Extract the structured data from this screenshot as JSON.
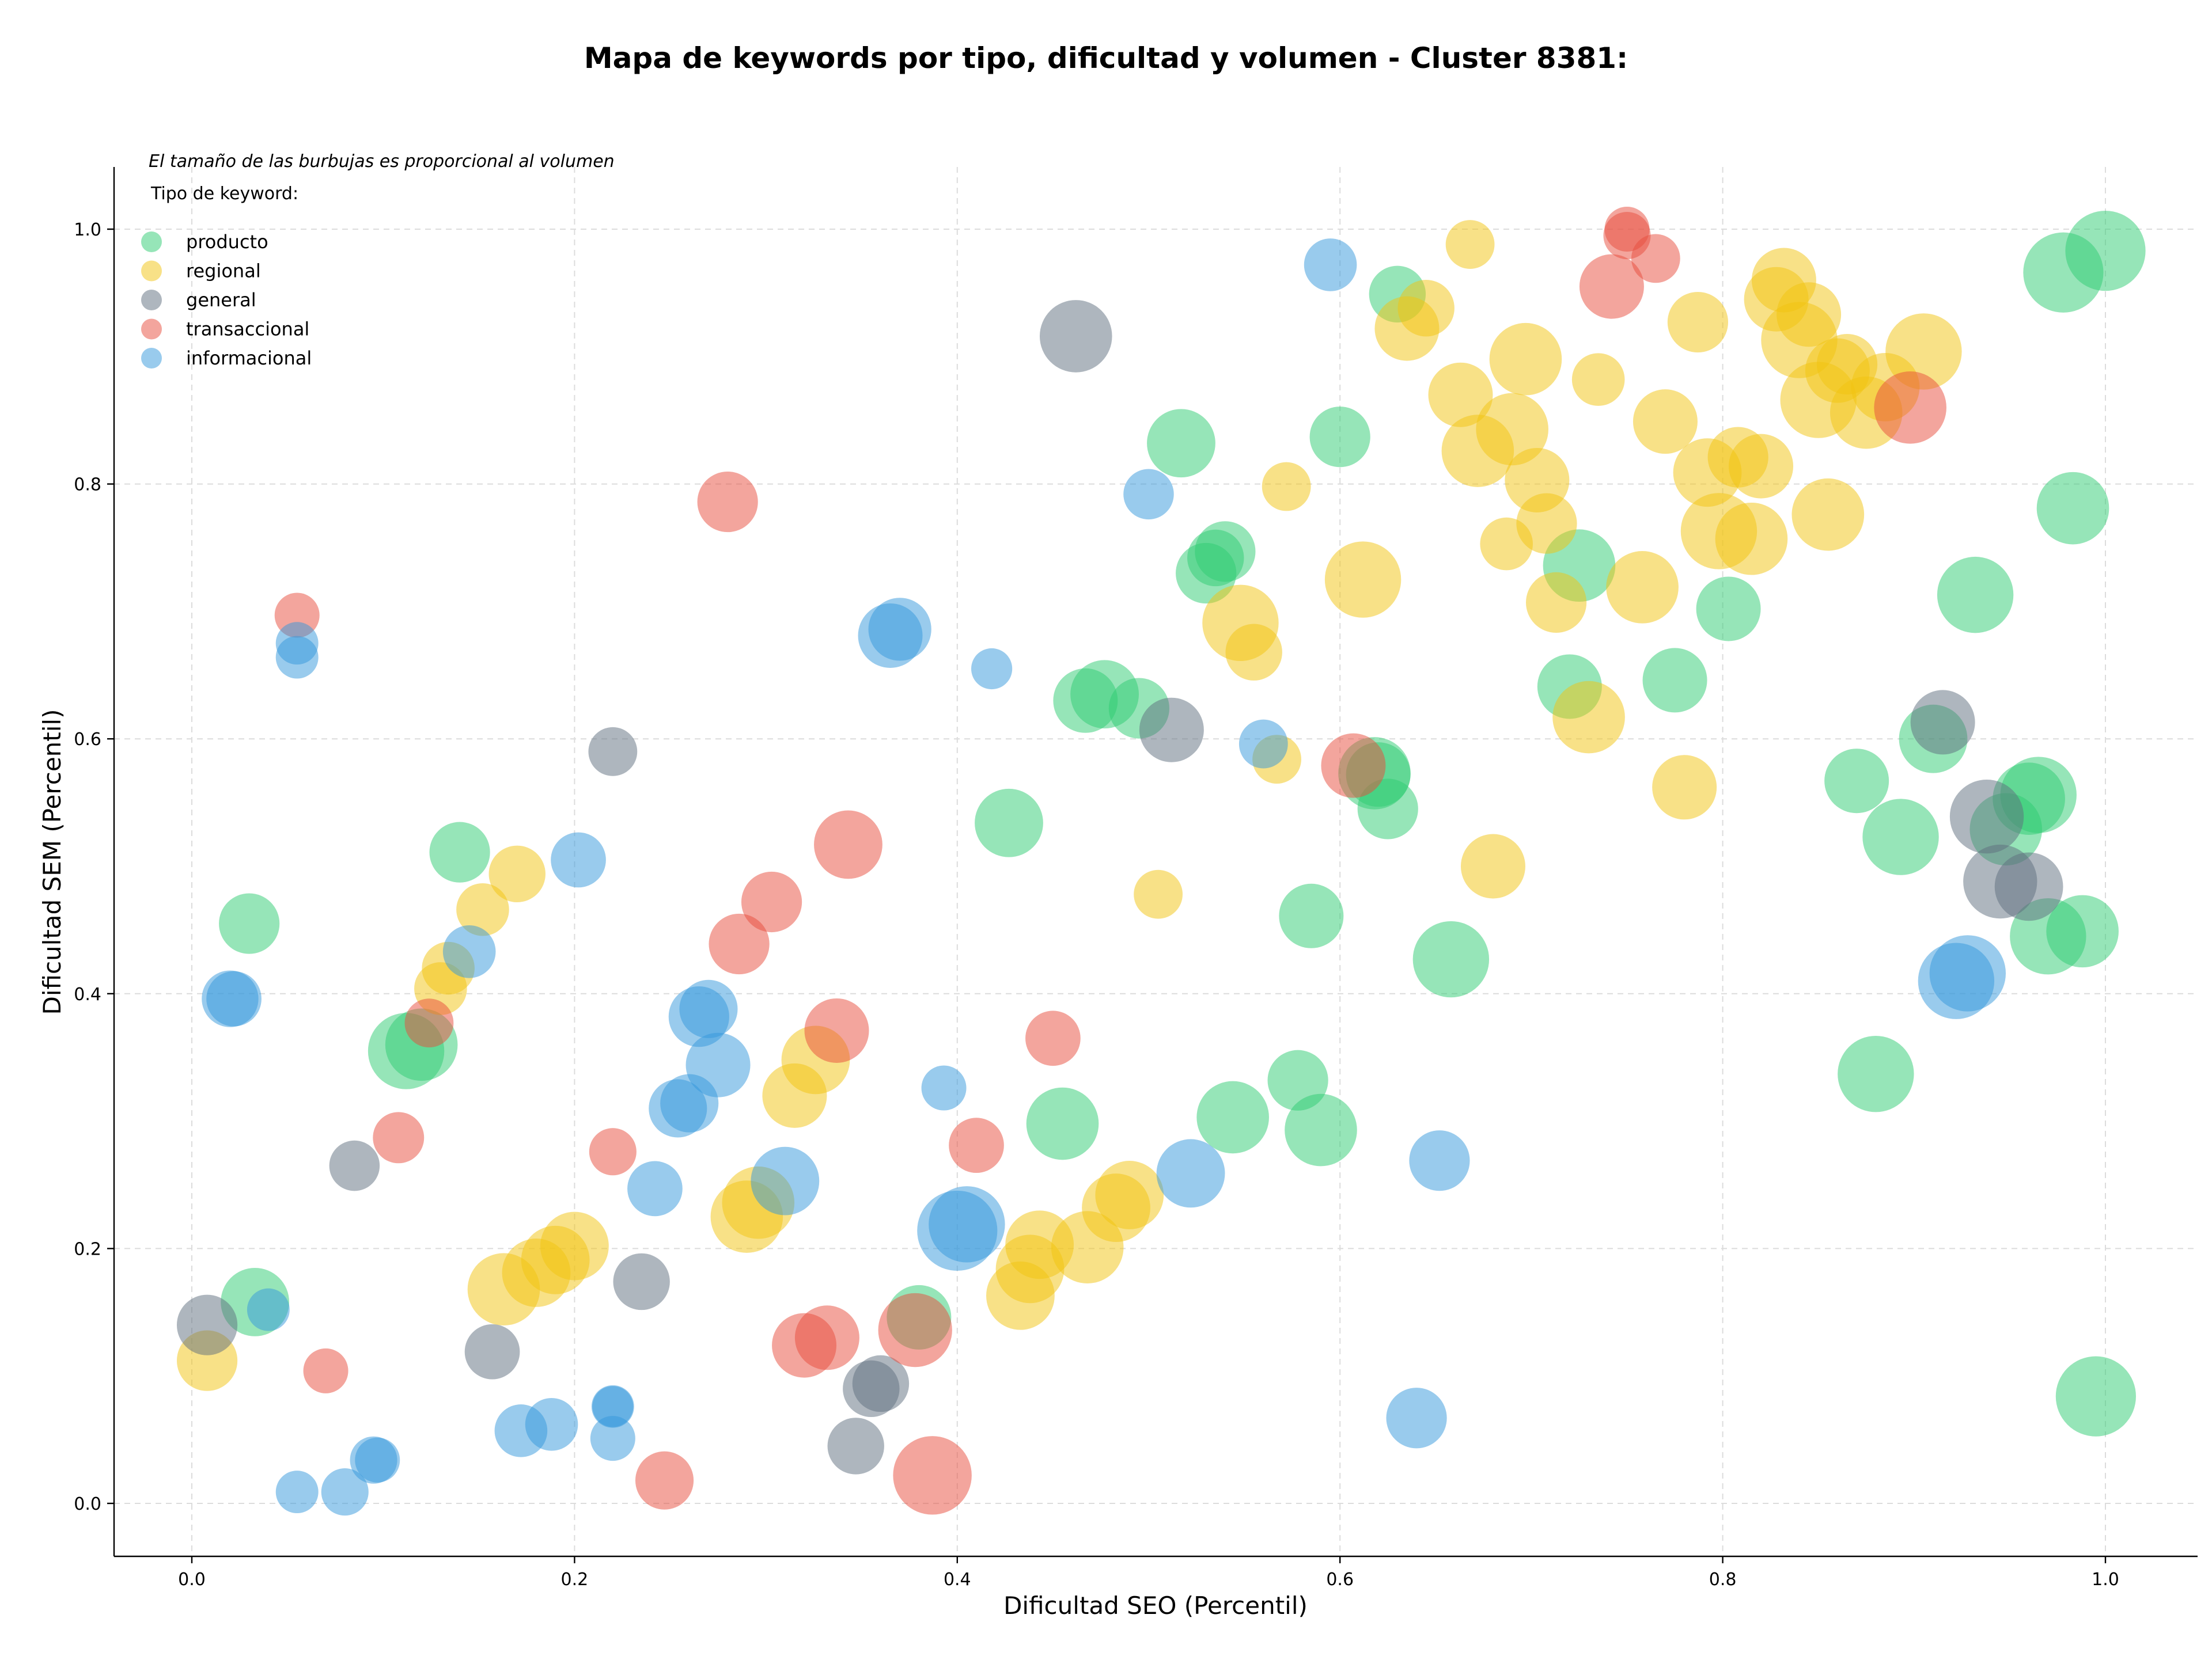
{
  "chart_data": {
    "type": "scatter",
    "title": "Mapa de keywords por tipo, dificultad y volumen - Cluster 8381:",
    "xlabel": "Dificultad SEO (Percentil)",
    "ylabel": "Dificultad SEM (Percentil)",
    "xlim": [
      -0.04,
      1.05
    ],
    "ylim": [
      -0.04,
      1.05
    ],
    "xticks": [
      "0.0",
      "0.2",
      "0.4",
      "0.6",
      "0.8",
      "1.0"
    ],
    "yticks": [
      "0.0",
      "0.2",
      "0.4",
      "0.6",
      "0.8",
      "1.0"
    ],
    "grid": true,
    "legend_placement": "top-left",
    "legend_title": "Tipo de keyword:",
    "annotation": "El tamaño de las burbujas es proporcional al volumen",
    "series": [
      {
        "name": "producto",
        "color": "#2ecc71",
        "points": [
          [
            0.03,
            0.455,
            0.45
          ],
          [
            0.033,
            0.158,
            0.55
          ],
          [
            0.112,
            0.355,
            0.65
          ],
          [
            0.12,
            0.36,
            0.6
          ],
          [
            0.14,
            0.511,
            0.45
          ],
          [
            0.38,
            0.146,
            0.5
          ],
          [
            0.427,
            0.534,
            0.55
          ],
          [
            0.455,
            0.298,
            0.6
          ],
          [
            0.467,
            0.63,
            0.5
          ],
          [
            0.477,
            0.635,
            0.55
          ],
          [
            0.495,
            0.624,
            0.45
          ],
          [
            0.517,
            0.832,
            0.55
          ],
          [
            0.53,
            0.73,
            0.45
          ],
          [
            0.535,
            0.742,
            0.4
          ],
          [
            0.54,
            0.747,
            0.45
          ],
          [
            0.544,
            0.303,
            0.6
          ],
          [
            0.578,
            0.332,
            0.45
          ],
          [
            0.585,
            0.461,
            0.5
          ],
          [
            0.59,
            0.293,
            0.6
          ],
          [
            0.6,
            0.837,
            0.45
          ],
          [
            0.618,
            0.573,
            0.6
          ],
          [
            0.62,
            0.572,
            0.5
          ],
          [
            0.625,
            0.545,
            0.45
          ],
          [
            0.63,
            0.949,
            0.4
          ],
          [
            0.658,
            0.427,
            0.65
          ],
          [
            0.725,
            0.736,
            0.6
          ],
          [
            0.72,
            0.641,
            0.5
          ],
          [
            0.775,
            0.646,
            0.5
          ],
          [
            0.803,
            0.702,
            0.5
          ],
          [
            0.87,
            0.567,
            0.5
          ],
          [
            0.88,
            0.337,
            0.65
          ],
          [
            0.893,
            0.523,
            0.65
          ],
          [
            0.91,
            0.6,
            0.55
          ],
          [
            0.932,
            0.713,
            0.65
          ],
          [
            0.948,
            0.529,
            0.6
          ],
          [
            0.96,
            0.553,
            0.6
          ],
          [
            0.965,
            0.556,
            0.65
          ],
          [
            0.97,
            0.445,
            0.65
          ],
          [
            0.978,
            0.966,
            0.7
          ],
          [
            0.983,
            0.781,
            0.6
          ],
          [
            0.988,
            0.449,
            0.6
          ],
          [
            0.995,
            0.084,
            0.7
          ],
          [
            1.0,
            0.983,
            0.7
          ]
        ]
      },
      {
        "name": "regional",
        "color": "#f1c40f",
        "points": [
          [
            0.008,
            0.112,
            0.45
          ],
          [
            0.13,
            0.404,
            0.35
          ],
          [
            0.134,
            0.42,
            0.35
          ],
          [
            0.152,
            0.466,
            0.35
          ],
          [
            0.17,
            0.494,
            0.4
          ],
          [
            0.163,
            0.168,
            0.6
          ],
          [
            0.18,
            0.181,
            0.55
          ],
          [
            0.19,
            0.191,
            0.55
          ],
          [
            0.2,
            0.202,
            0.55
          ],
          [
            0.29,
            0.225,
            0.6
          ],
          [
            0.296,
            0.236,
            0.6
          ],
          [
            0.315,
            0.32,
            0.5
          ],
          [
            0.326,
            0.348,
            0.55
          ],
          [
            0.433,
            0.163,
            0.55
          ],
          [
            0.438,
            0.184,
            0.55
          ],
          [
            0.443,
            0.203,
            0.55
          ],
          [
            0.468,
            0.201,
            0.6
          ],
          [
            0.483,
            0.232,
            0.55
          ],
          [
            0.49,
            0.242,
            0.55
          ],
          [
            0.505,
            0.478,
            0.3
          ],
          [
            0.548,
            0.691,
            0.65
          ],
          [
            0.555,
            0.668,
            0.4
          ],
          [
            0.567,
            0.584,
            0.3
          ],
          [
            0.572,
            0.798,
            0.3
          ],
          [
            0.612,
            0.725,
            0.65
          ],
          [
            0.635,
            0.922,
            0.5
          ],
          [
            0.645,
            0.938,
            0.4
          ],
          [
            0.663,
            0.87,
            0.5
          ],
          [
            0.668,
            0.988,
            0.3
          ],
          [
            0.672,
            0.826,
            0.6
          ],
          [
            0.68,
            0.5,
            0.5
          ],
          [
            0.687,
            0.753,
            0.35
          ],
          [
            0.69,
            0.843,
            0.6
          ],
          [
            0.697,
            0.898,
            0.6
          ],
          [
            0.703,
            0.803,
            0.5
          ],
          [
            0.708,
            0.769,
            0.45
          ],
          [
            0.713,
            0.707,
            0.45
          ],
          [
            0.73,
            0.617,
            0.6
          ],
          [
            0.735,
            0.882,
            0.35
          ],
          [
            0.758,
            0.719,
            0.6
          ],
          [
            0.77,
            0.849,
            0.5
          ],
          [
            0.78,
            0.562,
            0.5
          ],
          [
            0.787,
            0.927,
            0.45
          ],
          [
            0.792,
            0.809,
            0.55
          ],
          [
            0.798,
            0.763,
            0.65
          ],
          [
            0.808,
            0.821,
            0.45
          ],
          [
            0.815,
            0.757,
            0.6
          ],
          [
            0.82,
            0.814,
            0.5
          ],
          [
            0.832,
            0.96,
            0.5
          ],
          [
            0.828,
            0.945,
            0.5
          ],
          [
            0.84,
            0.913,
            0.65
          ],
          [
            0.845,
            0.933,
            0.5
          ],
          [
            0.85,
            0.866,
            0.65
          ],
          [
            0.855,
            0.776,
            0.6
          ],
          [
            0.86,
            0.889,
            0.5
          ],
          [
            0.865,
            0.894,
            0.45
          ],
          [
            0.875,
            0.856,
            0.6
          ],
          [
            0.885,
            0.876,
            0.55
          ],
          [
            0.905,
            0.904,
            0.65
          ]
        ]
      },
      {
        "name": "general",
        "color": "#5d6d7e",
        "points": [
          [
            0.008,
            0.14,
            0.45
          ],
          [
            0.085,
            0.265,
            0.32
          ],
          [
            0.157,
            0.119,
            0.38
          ],
          [
            0.22,
            0.59,
            0.3
          ],
          [
            0.235,
            0.174,
            0.4
          ],
          [
            0.347,
            0.045,
            0.4
          ],
          [
            0.355,
            0.09,
            0.4
          ],
          [
            0.36,
            0.094,
            0.4
          ],
          [
            0.462,
            0.916,
            0.6
          ],
          [
            0.512,
            0.607,
            0.5
          ],
          [
            0.915,
            0.613,
            0.5
          ],
          [
            0.938,
            0.539,
            0.62
          ],
          [
            0.945,
            0.488,
            0.62
          ],
          [
            0.96,
            0.484,
            0.55
          ]
        ]
      },
      {
        "name": "transaccional",
        "color": "#e74c3c",
        "points": [
          [
            0.055,
            0.697,
            0.25
          ],
          [
            0.07,
            0.104,
            0.25
          ],
          [
            0.108,
            0.287,
            0.33
          ],
          [
            0.124,
            0.377,
            0.3
          ],
          [
            0.22,
            0.276,
            0.28
          ],
          [
            0.247,
            0.018,
            0.42
          ],
          [
            0.28,
            0.786,
            0.45
          ],
          [
            0.286,
            0.439,
            0.45
          ],
          [
            0.303,
            0.472,
            0.45
          ],
          [
            0.32,
            0.124,
            0.5
          ],
          [
            0.332,
            0.13,
            0.5
          ],
          [
            0.337,
            0.371,
            0.5
          ],
          [
            0.343,
            0.517,
            0.55
          ],
          [
            0.378,
            0.136,
            0.62
          ],
          [
            0.387,
            0.022,
            0.68
          ],
          [
            0.41,
            0.281,
            0.38
          ],
          [
            0.45,
            0.365,
            0.38
          ],
          [
            0.607,
            0.579,
            0.5
          ],
          [
            0.742,
            0.955,
            0.5
          ],
          [
            0.75,
            0.995,
            0.28
          ],
          [
            0.75,
            1.0,
            0.25
          ],
          [
            0.765,
            0.977,
            0.3
          ],
          [
            0.898,
            0.86,
            0.6
          ]
        ]
      },
      {
        "name": "informacional",
        "color": "#3498db",
        "points": [
          [
            0.02,
            0.396,
            0.4
          ],
          [
            0.022,
            0.396,
            0.38
          ],
          [
            0.04,
            0.152,
            0.22
          ],
          [
            0.055,
            0.675,
            0.22
          ],
          [
            0.055,
            0.664,
            0.22
          ],
          [
            0.055,
            0.009,
            0.22
          ],
          [
            0.08,
            0.009,
            0.28
          ],
          [
            0.095,
            0.034,
            0.28
          ],
          [
            0.097,
            0.034,
            0.25
          ],
          [
            0.145,
            0.433,
            0.35
          ],
          [
            0.172,
            0.057,
            0.35
          ],
          [
            0.188,
            0.062,
            0.35
          ],
          [
            0.202,
            0.505,
            0.38
          ],
          [
            0.22,
            0.076,
            0.22
          ],
          [
            0.22,
            0.076,
            0.2
          ],
          [
            0.22,
            0.051,
            0.25
          ],
          [
            0.242,
            0.247,
            0.38
          ],
          [
            0.254,
            0.31,
            0.42
          ],
          [
            0.26,
            0.314,
            0.42
          ],
          [
            0.265,
            0.382,
            0.45
          ],
          [
            0.27,
            0.388,
            0.42
          ],
          [
            0.275,
            0.344,
            0.5
          ],
          [
            0.31,
            0.253,
            0.55
          ],
          [
            0.365,
            0.681,
            0.5
          ],
          [
            0.37,
            0.686,
            0.48
          ],
          [
            0.393,
            0.326,
            0.25
          ],
          [
            0.4,
            0.214,
            0.7
          ],
          [
            0.405,
            0.219,
            0.65
          ],
          [
            0.418,
            0.655,
            0.2
          ],
          [
            0.5,
            0.792,
            0.32
          ],
          [
            0.522,
            0.259,
            0.55
          ],
          [
            0.56,
            0.596,
            0.3
          ],
          [
            0.595,
            0.972,
            0.35
          ],
          [
            0.64,
            0.067,
            0.45
          ],
          [
            0.652,
            0.269,
            0.45
          ],
          [
            0.922,
            0.41,
            0.65
          ],
          [
            0.928,
            0.416,
            0.65
          ]
        ]
      }
    ]
  }
}
